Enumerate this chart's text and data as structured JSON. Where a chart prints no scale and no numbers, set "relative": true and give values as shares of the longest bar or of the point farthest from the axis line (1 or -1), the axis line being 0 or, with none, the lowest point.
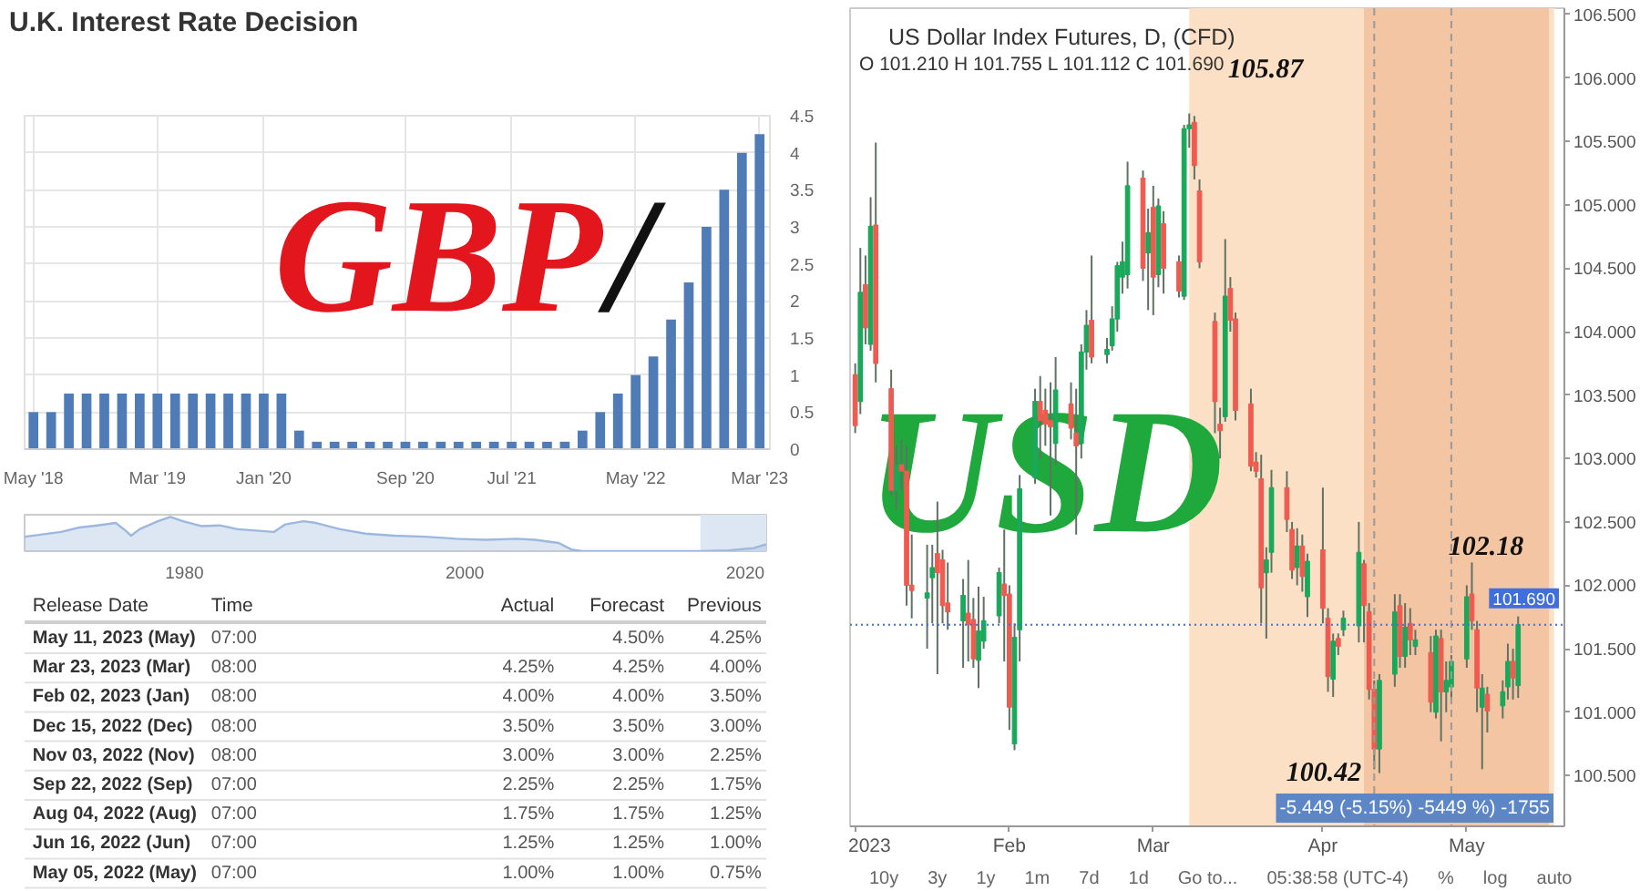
{
  "chart_data": [
    {
      "type": "bar",
      "title": "U.K. Interest Rate Decision",
      "categories": [
        "May '18",
        null,
        null,
        null,
        null,
        null,
        null,
        "Mar '19",
        null,
        null,
        null,
        null,
        null,
        "Jan '20",
        null,
        null,
        null,
        null,
        null,
        null,
        null,
        "Sep '20",
        null,
        null,
        null,
        null,
        null,
        "Jul '21",
        null,
        null,
        null,
        null,
        null,
        null,
        "May '22",
        null,
        null,
        null,
        null,
        null,
        null,
        "Mar '23"
      ],
      "values": [
        0.5,
        0.5,
        0.75,
        0.75,
        0.75,
        0.75,
        0.75,
        0.75,
        0.75,
        0.75,
        0.75,
        0.75,
        0.75,
        0.75,
        0.75,
        0.25,
        0.1,
        0.1,
        0.1,
        0.1,
        0.1,
        0.1,
        0.1,
        0.1,
        0.1,
        0.1,
        0.1,
        0.1,
        0.1,
        0.1,
        0.1,
        0.25,
        0.5,
        0.75,
        1,
        1.25,
        1.75,
        2.25,
        3,
        3.5,
        4,
        4.25
      ],
      "color": "#4f7cb6",
      "ylim": [
        0,
        4.5
      ],
      "yticks": [
        0,
        0.5,
        1,
        1.5,
        2,
        2.5,
        3,
        3.5,
        4,
        4.5
      ],
      "grid": true,
      "annotations": [
        "GBP",
        "/"
      ]
    },
    {
      "type": "area",
      "relative": true,
      "x": [
        1968.6,
        1971.2,
        1972.5,
        1973.8,
        1975.1,
        1975.8,
        1976.2,
        1976.8,
        1978.1,
        1979.0,
        1979.9,
        1981.2,
        1982.5,
        1983.8,
        1985.1,
        1986.4,
        1987.2,
        1988.5,
        1989.4,
        1991.1,
        1992.9,
        1995.0,
        1997.2,
        1999.4,
        2001.5,
        2003.7,
        2005.0,
        2006.7,
        2007.6,
        2008.4,
        2016.7,
        2018.8,
        2020.6,
        2021.5
      ],
      "values": [
        0.42,
        0.56,
        0.69,
        0.75,
        0.82,
        0.6,
        0.45,
        0.64,
        0.87,
        1,
        0.87,
        0.73,
        0.75,
        0.64,
        0.6,
        0.56,
        0.78,
        0.87,
        0.82,
        0.64,
        0.51,
        0.45,
        0.42,
        0.36,
        0.33,
        0.36,
        0.33,
        0.24,
        0.05,
        0,
        0,
        0.02,
        0.09,
        0.2
      ],
      "color": "#9db8de",
      "xlim": [
        1968.6,
        2021.5
      ],
      "xticks": [
        1980,
        2000,
        2020
      ],
      "tick_labels": "x",
      "bands": [
        {
          "axis": "x",
          "from": 2016.8,
          "to": 2021.5,
          "color": "#dde7f4"
        }
      ]
    },
    {
      "type": "other",
      "categories": [
        "Release Date",
        "Time",
        "Actual",
        "Forecast",
        "Previous"
      ],
      "cell_labels": [
        [
          "May 11, 2023 (May)",
          "07:00",
          null,
          "4.50%",
          "4.25%"
        ],
        [
          "Mar 23, 2023 (Mar)",
          "08:00",
          "4.25%",
          "4.25%",
          "4.00%"
        ],
        [
          "Feb 02, 2023 (Jan)",
          "08:00",
          "4.00%",
          "4.00%",
          "3.50%"
        ],
        [
          "Dec 15, 2022 (Dec)",
          "08:00",
          "3.50%",
          "3.50%",
          "3.00%"
        ],
        [
          "Nov 03, 2022 (Nov)",
          "08:00",
          "3.00%",
          "3.00%",
          "2.25%"
        ],
        [
          "Sep 22, 2022 (Sep)",
          "07:00",
          "2.25%",
          "2.25%",
          "1.75%"
        ],
        [
          "Aug 04, 2022 (Aug)",
          "07:00",
          "1.75%",
          "1.75%",
          "1.25%"
        ],
        [
          "Jun 16, 2022 (Jun)",
          "07:00",
          "1.25%",
          "1.25%",
          "1.00%"
        ],
        [
          "May 05, 2022 (May)",
          "07:00",
          "1.00%",
          "1.00%",
          "0.75%"
        ]
      ]
    },
    {
      "type": "candlestick",
      "title": "US Dollar Index Futures, D, (CFD)",
      "subtitle": "O 101.210 H 101.755 L 101.112 C 101.690",
      "x": [
        "2023-01-02",
        "2023-01-03",
        "2023-01-04",
        "2023-01-05",
        "2023-01-06",
        "2023-01-09",
        "2023-01-10",
        "2023-01-11",
        "2023-01-12",
        "2023-01-13",
        "2023-01-16",
        "2023-01-17",
        "2023-01-18",
        "2023-01-19",
        "2023-01-20",
        "2023-01-23",
        "2023-01-24",
        "2023-01-25",
        "2023-01-26",
        "2023-01-27",
        "2023-01-30",
        "2023-01-31",
        "2023-02-01",
        "2023-02-02",
        "2023-02-03",
        "2023-02-06",
        "2023-02-07",
        "2023-02-08",
        "2023-02-09",
        "2023-02-10",
        "2023-02-13",
        "2023-02-14",
        "2023-02-15",
        "2023-02-16",
        "2023-02-17",
        "2023-02-20",
        "2023-02-21",
        "2023-02-22",
        "2023-02-23",
        "2023-02-24",
        "2023-02-27",
        "2023-02-28",
        "2023-03-01",
        "2023-03-02",
        "2023-03-03",
        "2023-03-06",
        "2023-03-07",
        "2023-03-08",
        "2023-03-09",
        "2023-03-10",
        "2023-03-13",
        "2023-03-14",
        "2023-03-15",
        "2023-03-16",
        "2023-03-17",
        "2023-03-20",
        "2023-03-21",
        "2023-03-22",
        "2023-03-23",
        "2023-03-24",
        "2023-03-27",
        "2023-03-28",
        "2023-03-29",
        "2023-03-30",
        "2023-03-31",
        "2023-04-03",
        "2023-04-04",
        "2023-04-05",
        "2023-04-06",
        "2023-04-07",
        "2023-04-10",
        "2023-04-11",
        "2023-04-12",
        "2023-04-13",
        "2023-04-14",
        "2023-04-17",
        "2023-04-18",
        "2023-04-19",
        "2023-04-20",
        "2023-04-21",
        "2023-04-24",
        "2023-04-25",
        "2023-04-26",
        "2023-04-27",
        "2023-04-28",
        "2023-05-01",
        "2023-05-02",
        "2023-05-03",
        "2023-05-04",
        "2023-05-05",
        "2023-05-08",
        "2023-05-09",
        "2023-05-10",
        "2023-05-11"
      ],
      "ohlc": [
        [
          103.66,
          103.75,
          103.2,
          103.26
        ],
        [
          103.45,
          104.66,
          103.35,
          104.31
        ],
        [
          104.37,
          104.6,
          103.9,
          104.03
        ],
        [
          103.9,
          105.06,
          103.85,
          104.83
        ],
        [
          104.84,
          105.49,
          103.6,
          103.75
        ],
        [
          103.55,
          103.7,
          102.71,
          102.75
        ],
        [
          102.75,
          103.1,
          102.6,
          102.95
        ],
        [
          102.95,
          103.15,
          102.75,
          102.9
        ],
        [
          102.9,
          103.1,
          101.84,
          102.0
        ],
        [
          102.0,
          102.4,
          101.74,
          101.96
        ],
        [
          101.9,
          102.32,
          101.5,
          101.94
        ],
        [
          102.06,
          102.32,
          101.7,
          102.14
        ],
        [
          102.25,
          102.66,
          101.3,
          102.1
        ],
        [
          102.2,
          102.28,
          101.7,
          101.84
        ],
        [
          101.86,
          102.18,
          101.65,
          101.79
        ],
        [
          101.72,
          102.05,
          101.35,
          101.92
        ],
        [
          101.78,
          102.2,
          101.4,
          101.69
        ],
        [
          101.73,
          101.9,
          101.35,
          101.42
        ],
        [
          101.41,
          101.99,
          101.19,
          101.64
        ],
        [
          101.56,
          101.91,
          101.5,
          101.72
        ],
        [
          101.76,
          102.14,
          101.7,
          102.1
        ],
        [
          102.01,
          102.44,
          101.4,
          101.92
        ],
        [
          101.93,
          102.0,
          100.86,
          101.04
        ],
        [
          100.75,
          101.7,
          100.7,
          101.59
        ],
        [
          101.65,
          102.87,
          101.4,
          102.76
        ],
        [
          102.85,
          103.55,
          102.8,
          103.45
        ],
        [
          103.45,
          103.65,
          103.0,
          103.3
        ],
        [
          103.38,
          103.55,
          103.1,
          103.27
        ],
        [
          103.3,
          103.6,
          102.55,
          103.25
        ],
        [
          103.12,
          103.8,
          102.95,
          103.54
        ],
        [
          103.43,
          103.6,
          103.15,
          103.24
        ],
        [
          103.2,
          103.55,
          102.4,
          103.1
        ],
        [
          103.12,
          103.9,
          103.0,
          103.84
        ],
        [
          103.84,
          104.17,
          103.7,
          104.05
        ],
        [
          104.09,
          104.6,
          103.75,
          103.8
        ],
        [
          103.82,
          103.95,
          103.75,
          103.86
        ],
        [
          103.89,
          104.2,
          103.85,
          104.1
        ],
        [
          104.1,
          104.55,
          104.0,
          104.52
        ],
        [
          104.43,
          104.71,
          104.3,
          104.55
        ],
        [
          104.45,
          105.34,
          104.34,
          105.15
        ],
        [
          105.21,
          105.27,
          104.4,
          104.5
        ],
        [
          104.62,
          104.97,
          104.17,
          104.78
        ],
        [
          104.98,
          105.15,
          104.13,
          104.43
        ],
        [
          104.45,
          105.05,
          104.35,
          104.99
        ],
        [
          104.85,
          104.95,
          104.3,
          104.5
        ],
        [
          104.55,
          104.6,
          104.27,
          104.32
        ],
        [
          104.28,
          105.63,
          104.25,
          105.6
        ],
        [
          105.6,
          105.72,
          105.45,
          105.63
        ],
        [
          105.65,
          105.7,
          105.2,
          105.31
        ],
        [
          105.11,
          105.2,
          104.5,
          104.55
        ],
        [
          104.08,
          104.15,
          103.2,
          103.45
        ],
        [
          103.27,
          103.4,
          103.0,
          103.22
        ],
        [
          103.33,
          104.73,
          103.29,
          104.28
        ],
        [
          104.34,
          104.43,
          104.0,
          104.09
        ],
        [
          104.1,
          104.15,
          103.3,
          103.38
        ],
        [
          103.43,
          103.55,
          102.9,
          102.94
        ],
        [
          102.97,
          103.05,
          102.85,
          102.9
        ],
        [
          102.84,
          103.03,
          101.7,
          101.98
        ],
        [
          102.1,
          102.3,
          101.58,
          102.2
        ],
        [
          102.26,
          102.91,
          102.1,
          102.77
        ],
        [
          102.77,
          102.9,
          102.42,
          102.52
        ],
        [
          102.44,
          102.5,
          102.05,
          102.12
        ],
        [
          102.14,
          102.45,
          102.0,
          102.31
        ],
        [
          102.31,
          102.4,
          101.95,
          102.07
        ],
        [
          101.91,
          102.25,
          101.75,
          102.19
        ],
        [
          102.28,
          102.77,
          101.7,
          101.82
        ],
        [
          101.74,
          101.82,
          101.16,
          101.28
        ],
        [
          101.26,
          101.62,
          101.12,
          101.56
        ],
        [
          101.58,
          101.62,
          101.45,
          101.52
        ],
        [
          101.65,
          101.8,
          101.6,
          101.74
        ],
        [
          101.68,
          102.5,
          101.55,
          102.26
        ],
        [
          102.17,
          102.2,
          101.55,
          101.84
        ],
        [
          101.79,
          101.86,
          101.1,
          101.18
        ],
        [
          101.18,
          101.25,
          100.55,
          100.71
        ],
        [
          100.71,
          101.3,
          100.52,
          101.25
        ],
        [
          101.3,
          101.93,
          101.2,
          101.79
        ],
        [
          101.84,
          101.93,
          101.35,
          101.44
        ],
        [
          101.44,
          101.86,
          101.35,
          101.67
        ],
        [
          101.7,
          101.82,
          101.45,
          101.57
        ],
        [
          101.52,
          101.65,
          101.45,
          101.57
        ],
        [
          101.47,
          101.6,
          101.0,
          101.08
        ],
        [
          101.0,
          101.65,
          100.95,
          101.6
        ],
        [
          101.58,
          101.65,
          100.77,
          101.16
        ],
        [
          101.16,
          101.4,
          101.0,
          101.25
        ],
        [
          101.2,
          101.45,
          101.1,
          101.4
        ],
        [
          101.42,
          102.0,
          101.35,
          101.91
        ],
        [
          101.93,
          102.18,
          101.65,
          101.72
        ],
        [
          101.65,
          101.72,
          101.0,
          101.19
        ],
        [
          101.04,
          101.3,
          100.55,
          101.19
        ],
        [
          101.14,
          101.2,
          100.84,
          101.01
        ],
        [
          101.05,
          101.25,
          100.95,
          101.16
        ],
        [
          101.2,
          101.54,
          101.1,
          101.4
        ],
        [
          101.4,
          101.5,
          101.1,
          101.27
        ],
        [
          101.21,
          101.755,
          101.112,
          101.69
        ]
      ],
      "colors": [
        "#ef5b50",
        "#1aa85b",
        "#ef5b50",
        "#1aa85b",
        "#ef5b50",
        "#ef5b50",
        "#1aa85b",
        "#ef5b50",
        "#ef5b50",
        "#ef5b50",
        "#1aa85b",
        "#1aa85b",
        "#ef5b50",
        "#ef5b50",
        "#ef5b50",
        "#1aa85b",
        "#ef5b50",
        "#ef5b50",
        "#1aa85b",
        "#1aa85b",
        "#1aa85b",
        "#ef5b50",
        "#ef5b50",
        "#1aa85b",
        "#1aa85b",
        "#1aa85b",
        "#ef5b50",
        "#ef5b50",
        "#ef5b50",
        "#1aa85b",
        "#ef5b50",
        "#ef5b50",
        "#1aa85b",
        "#1aa85b",
        "#ef5b50",
        "#1aa85b",
        "#1aa85b",
        "#1aa85b",
        "#1aa85b",
        "#1aa85b",
        "#ef5b50",
        "#1aa85b",
        "#ef5b50",
        "#1aa85b",
        "#ef5b50",
        "#ef5b50",
        "#1aa85b",
        "#1aa85b",
        "#ef5b50",
        "#ef5b50",
        "#ef5b50",
        "#ef5b50",
        "#1aa85b",
        "#ef5b50",
        "#ef5b50",
        "#ef5b50",
        "#ef5b50",
        "#ef5b50",
        "#1aa85b",
        "#1aa85b",
        "#ef5b50",
        "#ef5b50",
        "#1aa85b",
        "#ef5b50",
        "#1aa85b",
        "#ef5b50",
        "#ef5b50",
        "#1aa85b",
        "#ef5b50",
        "#1aa85b",
        "#1aa85b",
        "#ef5b50",
        "#ef5b50",
        "#ef5b50",
        "#1aa85b",
        "#1aa85b",
        "#ef5b50",
        "#1aa85b",
        "#ef5b50",
        "#1aa85b",
        "#ef5b50",
        "#1aa85b",
        "#ef5b50",
        "#1aa85b",
        "#1aa85b",
        "#1aa85b",
        "#ef5b50",
        "#ef5b50",
        "#1aa85b",
        "#ef5b50",
        "#1aa85b",
        "#1aa85b",
        "#ef5b50",
        "#1aa85b"
      ],
      "xlim": [
        "2023-01-01",
        "2023-05-20"
      ],
      "xticks": [
        {
          "value": "2023-01-02",
          "label": "2023"
        },
        {
          "value": "2023-02-01",
          "label": "Feb"
        },
        {
          "value": "2023-03-01",
          "label": "Mar"
        },
        {
          "value": "2023-04-03",
          "label": "Apr"
        },
        {
          "value": "2023-05-01",
          "label": "May"
        }
      ],
      "ylim": [
        100.1,
        106.55
      ],
      "yticks": [
        {
          "value": 100.5,
          "label": "100.500"
        },
        {
          "value": 101,
          "label": "101.000"
        },
        {
          "value": 101.5,
          "label": "101.500"
        },
        {
          "value": 102,
          "label": "102.000"
        },
        {
          "value": 102.5,
          "label": "102.500"
        },
        {
          "value": 103,
          "label": "103.000"
        },
        {
          "value": 103.5,
          "label": "103.500"
        },
        {
          "value": 104,
          "label": "104.000"
        },
        {
          "value": 104.5,
          "label": "104.500"
        },
        {
          "value": 105,
          "label": "105.000"
        },
        {
          "value": 105.5,
          "label": "105.500"
        },
        {
          "value": 106,
          "label": "106.000"
        },
        {
          "value": 106.5,
          "label": "106.500"
        }
      ],
      "bands": [
        {
          "axis": "x",
          "from": "2023-03-08",
          "to": "2023-05-18",
          "color": "#fbe0c6"
        },
        {
          "axis": "x",
          "from": "2023-04-11",
          "to": "2023-05-17",
          "color": "#f3c5a2"
        }
      ],
      "ref_lines": [
        {
          "axis": "x",
          "value": "2023-04-13",
          "color": "#9a9a9a",
          "line_style": "dashed"
        },
        {
          "axis": "x",
          "value": "2023-04-28",
          "color": "#9a9a9a",
          "line_style": "dashed"
        },
        {
          "axis": "y",
          "value": 101.69,
          "label": "101.690",
          "color": "#3f6fdc",
          "line_style": "dotted"
        }
      ],
      "annotations": [
        "105.87",
        "102.18",
        "100.42",
        "USD",
        "-5.449 (-5.15%) -5449 %) -1755",
        "10y",
        "3y",
        "1y",
        "1m",
        "7d",
        "1d",
        "Go to...",
        "05:38:58 (UTC-4)",
        "%",
        "log",
        "auto"
      ]
    }
  ]
}
